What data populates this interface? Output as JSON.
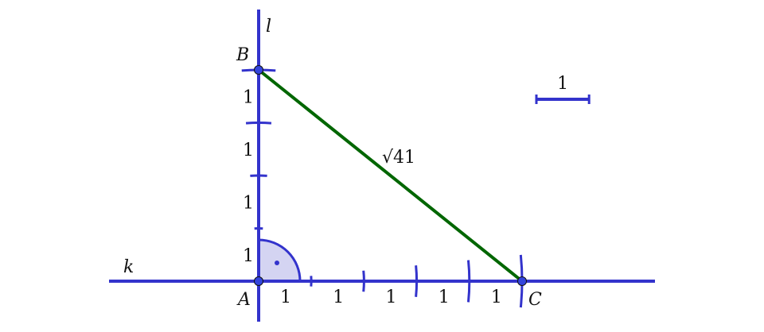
{
  "colors": {
    "line": "#3333cc",
    "segment": "#006600",
    "angle_fill": "#d4d4f2",
    "point": "#3344dd"
  },
  "lines": [
    {
      "name": "k",
      "label": "k",
      "direction": "horizontal"
    },
    {
      "name": "l",
      "label": "l",
      "direction": "vertical"
    }
  ],
  "points": [
    {
      "name": "A",
      "label": "A",
      "x": 0,
      "y": 0
    },
    {
      "name": "B",
      "label": "B",
      "x": 0,
      "y": 4
    },
    {
      "name": "C",
      "label": "C",
      "x": 5,
      "y": 0
    }
  ],
  "segment_BC": {
    "label": "√41"
  },
  "unit_label": "1",
  "horizontal_units": 5,
  "vertical_units": 4,
  "right_angle_at": "A",
  "scale_bar": {
    "label": "1",
    "length": 1
  }
}
